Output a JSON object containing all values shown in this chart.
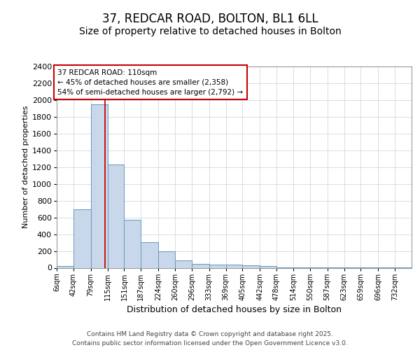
{
  "title1": "37, REDCAR ROAD, BOLTON, BL1 6LL",
  "title2": "Size of property relative to detached houses in Bolton",
  "xlabel": "Distribution of detached houses by size in Bolton",
  "ylabel": "Number of detached properties",
  "bins": [
    "6sqm",
    "42sqm",
    "79sqm",
    "115sqm",
    "151sqm",
    "187sqm",
    "224sqm",
    "260sqm",
    "296sqm",
    "333sqm",
    "369sqm",
    "405sqm",
    "442sqm",
    "478sqm",
    "514sqm",
    "550sqm",
    "587sqm",
    "623sqm",
    "659sqm",
    "696sqm",
    "732sqm"
  ],
  "bin_edges": [
    6,
    42,
    79,
    115,
    151,
    187,
    224,
    260,
    296,
    333,
    369,
    405,
    442,
    478,
    514,
    550,
    587,
    623,
    659,
    696,
    732,
    768
  ],
  "values": [
    20,
    700,
    1950,
    1230,
    570,
    305,
    200,
    85,
    50,
    40,
    35,
    30,
    20,
    5,
    5,
    3,
    2,
    1,
    1,
    1,
    1
  ],
  "bar_facecolor": "#c8d8ea",
  "bar_edgecolor": "#6699bb",
  "grid_color": "#d0d8e0",
  "bg_color": "#ffffff",
  "plot_bg_color": "#ffffff",
  "annotation_box_color": "#cc0000",
  "vline_color": "#cc0000",
  "vline_x": 110,
  "annotation_title": "37 REDCAR ROAD: 110sqm",
  "annotation_line1": "← 45% of detached houses are smaller (2,358)",
  "annotation_line2": "54% of semi-detached houses are larger (2,792) →",
  "footer1": "Contains HM Land Registry data © Crown copyright and database right 2025.",
  "footer2": "Contains public sector information licensed under the Open Government Licence v3.0.",
  "ylim": [
    0,
    2400
  ],
  "yticks": [
    0,
    200,
    400,
    600,
    800,
    1000,
    1200,
    1400,
    1600,
    1800,
    2000,
    2200,
    2400
  ],
  "title1_fontsize": 12,
  "title2_fontsize": 10,
  "xlabel_fontsize": 9,
  "ylabel_fontsize": 8,
  "tick_fontsize": 8,
  "xtick_fontsize": 7,
  "footer_fontsize": 6.5,
  "ann_fontsize": 7.5
}
